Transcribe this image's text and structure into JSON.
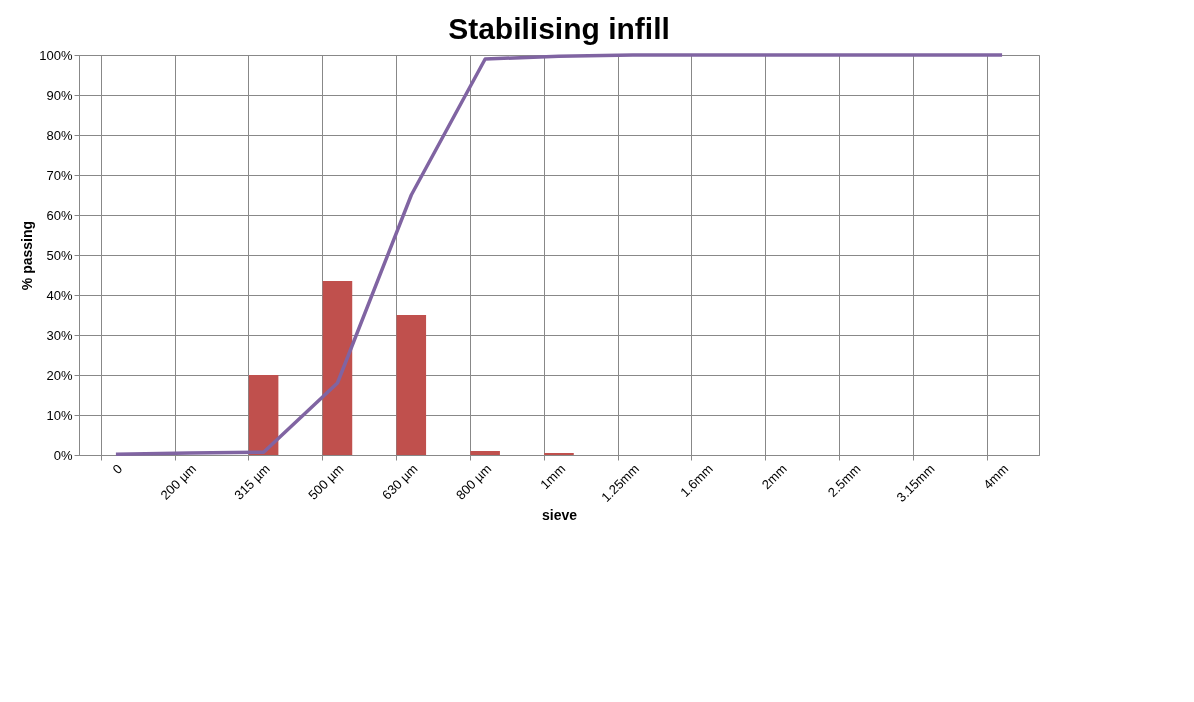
{
  "chart_data": {
    "type": "bar",
    "title": "Stabilising infill",
    "xlabel": "sieve",
    "ylabel": "% passing",
    "categories": [
      "0",
      "200 µm",
      "315 µm",
      "500 µm",
      "630 µm",
      "800 µm",
      "1mm",
      "1.25mm",
      "1.6mm",
      "2mm",
      "2.5mm",
      "3.15mm",
      "4mm"
    ],
    "series": [
      {
        "color": "#c0504d",
        "values": [
          0,
          0,
          20,
          43.5,
          35,
          1,
          0.5,
          0,
          0,
          0,
          0,
          0,
          0
        ]
      },
      {
        "type": "line",
        "color": "#8064a2",
        "values": [
          0.2,
          0.5,
          0.7,
          18,
          65,
          99,
          99.7,
          100,
          100,
          100,
          100,
          100,
          100
        ]
      }
    ],
    "ylim": [
      0,
      100
    ],
    "yticks": [
      {
        "value": 0,
        "label": "0%"
      },
      {
        "value": 10,
        "label": "10%"
      },
      {
        "value": 20,
        "label": "20%"
      },
      {
        "value": 30,
        "label": "30%"
      },
      {
        "value": 40,
        "label": "40%"
      },
      {
        "value": 50,
        "label": "50%"
      },
      {
        "value": 60,
        "label": "60%"
      },
      {
        "value": 70,
        "label": "70%"
      },
      {
        "value": 80,
        "label": "80%"
      },
      {
        "value": 90,
        "label": "90%"
      },
      {
        "value": 100,
        "label": "100%"
      }
    ],
    "grid": true
  }
}
